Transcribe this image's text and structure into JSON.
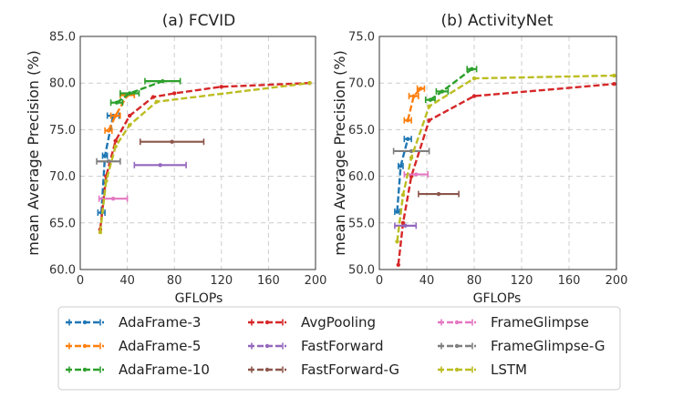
{
  "chart_data": [
    {
      "type": "line",
      "title": "(a) FCVID",
      "xlabel": "GFLOPs",
      "ylabel": "mean Average Precision (%)",
      "xlim": [
        0,
        200
      ],
      "ylim": [
        60,
        85
      ],
      "xticks": [
        0,
        40,
        80,
        120,
        160,
        200
      ],
      "yticks": [
        "60.0",
        "65.0",
        "70.0",
        "75.0",
        "80.0",
        "85.0"
      ],
      "grid": true,
      "series": [
        {
          "name": "AdaFrame-3",
          "color": "#1f77b4",
          "points": [
            [
              18,
              66.1,
              3
            ],
            [
              21,
              72.2,
              2
            ],
            [
              28,
              76.5,
              5
            ]
          ]
        },
        {
          "name": "AdaFrame-5",
          "color": "#ff7f0e",
          "points": [
            [
              24,
              74.9,
              3
            ],
            [
              30,
              76.5,
              4
            ],
            [
              40,
              78.7,
              6
            ]
          ]
        },
        {
          "name": "AdaFrame-10",
          "color": "#2ca02c",
          "points": [
            [
              31,
              77.9,
              5
            ],
            [
              42,
              78.9,
              8
            ],
            [
              70,
              80.2,
              15
            ]
          ]
        },
        {
          "name": "AvgPooling",
          "color": "#d62728",
          "points": [
            [
              17,
              64.3,
              0
            ],
            [
              22,
              70.0,
              0
            ],
            [
              30,
              73.8,
              0
            ],
            [
              42,
              76.5,
              0
            ],
            [
              62,
              78.5,
              0
            ],
            [
              80,
              78.9,
              0
            ],
            [
              120,
              79.6,
              0
            ],
            [
              195,
              80.0,
              0
            ]
          ]
        },
        {
          "name": "FastForward",
          "color": "#9467bd",
          "points": [
            [
              68,
              71.2,
              22
            ]
          ]
        },
        {
          "name": "FastForward-G",
          "color": "#8c564b",
          "points": [
            [
              78,
              73.7,
              27
            ]
          ]
        },
        {
          "name": "FrameGlimpse",
          "color": "#e377c2",
          "points": [
            [
              28,
              67.6,
              12
            ]
          ]
        },
        {
          "name": "FrameGlimpse-G",
          "color": "#7f7f7f",
          "points": [
            [
              24,
              71.6,
              10
            ]
          ]
        },
        {
          "name": "LSTM",
          "color": "#bcbd22",
          "points": [
            [
              17,
              64.0,
              0
            ],
            [
              22,
              69.5,
              0
            ],
            [
              30,
              73.2,
              0
            ],
            [
              42,
              75.5,
              0
            ],
            [
              65,
              78.0,
              0
            ],
            [
              195,
              80.0,
              0
            ]
          ]
        }
      ]
    },
    {
      "type": "line",
      "title": "(b) ActivityNet",
      "xlabel": "GFLOPs",
      "ylabel": "mean Average Precision (%)",
      "xlim": [
        0,
        200
      ],
      "ylim": [
        50,
        75
      ],
      "xticks": [
        0,
        40,
        80,
        120,
        160,
        200
      ],
      "yticks": [
        "50.0",
        "55.0",
        "60.0",
        "65.0",
        "70.0",
        "75.0"
      ],
      "grid": true,
      "series": [
        {
          "name": "AdaFrame-3",
          "color": "#1f77b4",
          "points": [
            [
              15,
              56.2,
              2
            ],
            [
              18,
              61.1,
              2
            ],
            [
              24,
              64.0,
              3
            ]
          ]
        },
        {
          "name": "AdaFrame-5",
          "color": "#ff7f0e",
          "points": [
            [
              24,
              66.0,
              3
            ],
            [
              29,
              68.6,
              4
            ],
            [
              35,
              69.4,
              3
            ]
          ]
        },
        {
          "name": "AdaFrame-10",
          "color": "#2ca02c",
          "points": [
            [
              43,
              68.2,
              4
            ],
            [
              53,
              69.1,
              5
            ],
            [
              78,
              71.5,
              4
            ]
          ]
        },
        {
          "name": "AvgPooling",
          "color": "#d62728",
          "points": [
            [
              16,
              50.5,
              0
            ],
            [
              20,
              55.0,
              0
            ],
            [
              27,
              60.0,
              0
            ],
            [
              42,
              66.0,
              0
            ],
            [
              80,
              68.6,
              0
            ],
            [
              198,
              69.9,
              0
            ]
          ]
        },
        {
          "name": "FastForward",
          "color": "#9467bd",
          "points": [
            [
              22,
              54.7,
              9
            ]
          ]
        },
        {
          "name": "FastForward-G",
          "color": "#8c564b",
          "points": [
            [
              50,
              58.1,
              17
            ]
          ]
        },
        {
          "name": "FrameGlimpse",
          "color": "#e377c2",
          "points": [
            [
              31,
              60.2,
              10
            ]
          ]
        },
        {
          "name": "FrameGlimpse-G",
          "color": "#7f7f7f",
          "points": [
            [
              27,
              62.7,
              15
            ]
          ]
        },
        {
          "name": "LSTM",
          "color": "#bcbd22",
          "points": [
            [
              15,
              53.0,
              0
            ],
            [
              20,
              58.0,
              0
            ],
            [
              27,
              62.0,
              0
            ],
            [
              42,
              67.5,
              0
            ],
            [
              80,
              70.5,
              0
            ],
            [
              198,
              70.8,
              0
            ]
          ]
        }
      ]
    }
  ],
  "legend": {
    "position": "bottom",
    "items": [
      "AdaFrame-3",
      "AdaFrame-5",
      "AdaFrame-10",
      "AvgPooling",
      "FastForward",
      "FastForward-G",
      "FrameGlimpse",
      "FrameGlimpse-G",
      "LSTM"
    ]
  }
}
